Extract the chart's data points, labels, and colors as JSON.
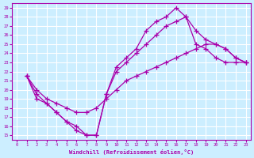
{
  "xlabel": "Windchill (Refroidissement éolien,°C)",
  "xlim": [
    -0.5,
    23.5
  ],
  "ylim": [
    14.5,
    29.5
  ],
  "yticks": [
    15,
    16,
    17,
    18,
    19,
    20,
    21,
    22,
    23,
    24,
    25,
    26,
    27,
    28,
    29
  ],
  "xticks": [
    0,
    1,
    2,
    3,
    4,
    5,
    6,
    7,
    8,
    9,
    10,
    11,
    12,
    13,
    14,
    15,
    16,
    17,
    18,
    19,
    20,
    21,
    22,
    23
  ],
  "bg_color": "#cceeff",
  "grid_color": "#ffffff",
  "line_color": "#aa00aa",
  "line1_x": [
    1,
    2,
    3,
    4,
    5,
    6,
    7,
    8,
    9,
    10,
    11,
    12,
    13,
    14,
    15,
    16,
    17,
    18,
    19,
    20,
    21,
    22,
    23
  ],
  "line1_y": [
    21.5,
    19.0,
    18.5,
    17.5,
    16.5,
    15.5,
    15.0,
    15.0,
    19.5,
    22.5,
    23.5,
    24.5,
    26.5,
    27.5,
    28.0,
    29.0,
    28.0,
    25.0,
    24.5,
    23.5,
    23.0,
    23.0,
    23.0
  ],
  "line2_x": [
    1,
    2,
    3,
    4,
    5,
    6,
    7,
    8,
    9,
    10,
    11,
    12,
    13,
    14,
    15,
    16,
    17,
    18,
    19,
    20,
    21,
    22,
    23
  ],
  "line2_y": [
    21.5,
    19.5,
    18.5,
    17.5,
    16.5,
    16.0,
    15.0,
    15.0,
    19.5,
    22.0,
    23.0,
    24.0,
    25.0,
    26.0,
    27.0,
    27.5,
    28.0,
    26.5,
    25.5,
    25.0,
    24.5,
    23.5,
    23.0
  ],
  "line3_x": [
    1,
    2,
    3,
    4,
    5,
    6,
    7,
    8,
    9,
    10,
    11,
    12,
    13,
    14,
    15,
    16,
    17,
    18,
    19,
    20,
    21,
    22,
    23
  ],
  "line3_y": [
    21.5,
    20.0,
    19.0,
    18.5,
    18.0,
    17.5,
    17.5,
    18.0,
    19.0,
    20.0,
    21.0,
    21.5,
    22.0,
    22.5,
    23.0,
    23.5,
    24.0,
    24.5,
    25.0,
    25.0,
    24.5,
    23.5,
    23.0
  ]
}
